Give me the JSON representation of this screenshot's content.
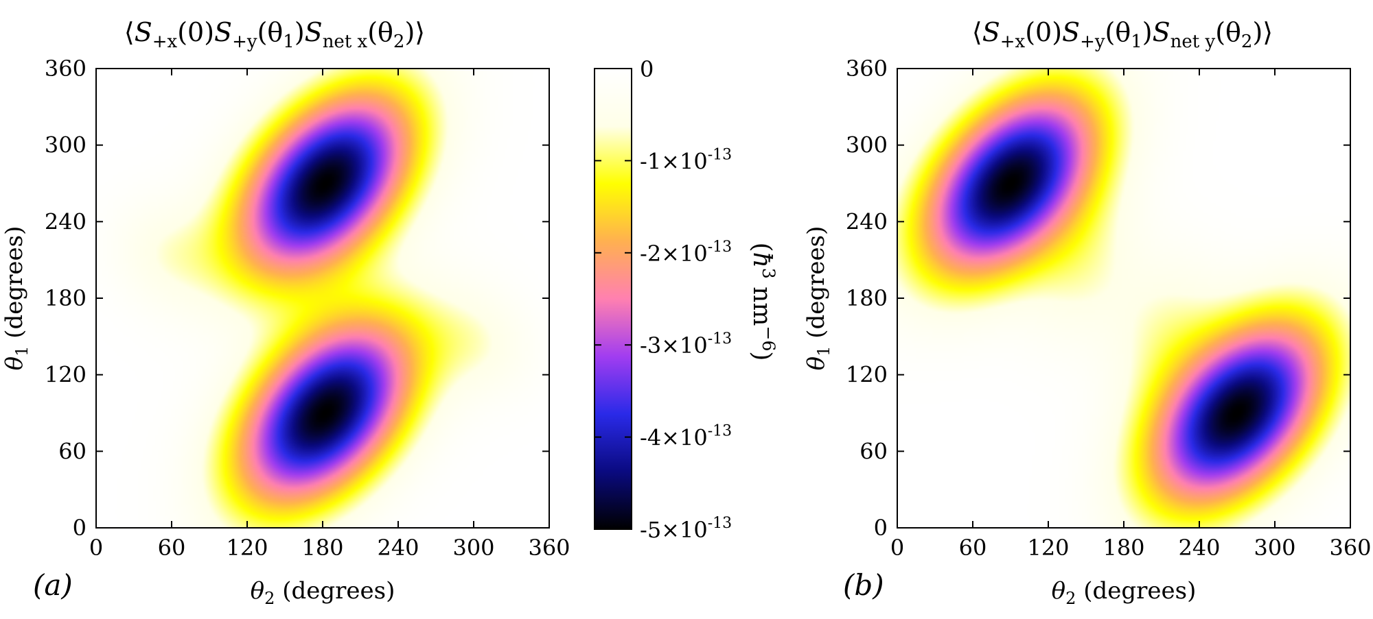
{
  "chart_data": [
    {
      "type": "heatmap",
      "panel_label": "(a)",
      "title": {
        "open": "⟨",
        "close": "⟩",
        "terms": [
          {
            "sym": "S",
            "sub": "+x",
            "arg": "(0)"
          },
          {
            "sym": "S",
            "sub": "+y",
            "arg": "(θ",
            "argsub": "1",
            "argend": ")"
          },
          {
            "sym": "S",
            "sub": "net x",
            "arg": "(θ",
            "argsub": "2",
            "argend": ")"
          }
        ]
      },
      "xlabel": {
        "sym": "θ",
        "sub": "2",
        "text": " (degrees)"
      },
      "ylabel": {
        "sym": "θ",
        "sub": "1",
        "text": " (degrees)"
      },
      "xlim": [
        0,
        360
      ],
      "ylim": [
        0,
        360
      ],
      "xticks": [
        "0",
        "60",
        "120",
        "180",
        "240",
        "300",
        "360"
      ],
      "yticks": [
        "0",
        "60",
        "120",
        "180",
        "240",
        "300",
        "360"
      ],
      "components": [
        {
          "x": 182,
          "y": 270,
          "amp": -5e-13,
          "sx": 48,
          "sy": 50,
          "rho": 0.45
        },
        {
          "x": 182,
          "y": 90,
          "amp": -5e-13,
          "sx": 48,
          "sy": 50,
          "rho": 0.45
        },
        {
          "x": 55,
          "y": 215,
          "amp": -5.5e-14,
          "sx": 30,
          "sy": 30,
          "rho": -0.1
        },
        {
          "x": 305,
          "y": 145,
          "amp": -5.5e-14,
          "sx": 30,
          "sy": 30,
          "rho": -0.1
        }
      ]
    },
    {
      "type": "heatmap",
      "panel_label": "(b)",
      "title": {
        "open": "⟨",
        "close": "⟩",
        "terms": [
          {
            "sym": "S",
            "sub": "+x",
            "arg": "(0)"
          },
          {
            "sym": "S",
            "sub": "+y",
            "arg": "(θ",
            "argsub": "1",
            "argend": ")"
          },
          {
            "sym": "S",
            "sub": "net y",
            "arg": "(θ",
            "argsub": "2",
            "argend": ")"
          }
        ]
      },
      "xlabel": {
        "sym": "θ",
        "sub": "2",
        "text": " (degrees)"
      },
      "ylabel": {
        "sym": "θ",
        "sub": "1",
        "text": " (degrees)"
      },
      "xlim": [
        0,
        360
      ],
      "ylim": [
        0,
        360
      ],
      "xticks": [
        "0",
        "60",
        "120",
        "180",
        "240",
        "300",
        "360"
      ],
      "yticks": [
        "0",
        "60",
        "120",
        "180",
        "240",
        "300",
        "360"
      ],
      "components": [
        {
          "x": 90,
          "y": 270,
          "amp": -5e-13,
          "sx": 48,
          "sy": 50,
          "rho": 0.45
        },
        {
          "x": 270,
          "y": 90,
          "amp": -5e-13,
          "sx": 48,
          "sy": 50,
          "rho": 0.45
        },
        {
          "x": 150,
          "y": 200,
          "amp": -6e-14,
          "sx": 32,
          "sy": 40,
          "rho": 0.3
        },
        {
          "x": 210,
          "y": 160,
          "amp": -6e-14,
          "sx": 32,
          "sy": 40,
          "rho": 0.3
        }
      ]
    }
  ],
  "colorbar": {
    "range": [
      -5e-13,
      0
    ],
    "ticks": [
      {
        "value": 0,
        "label": "0"
      },
      {
        "value": -1e-13,
        "mant": "-1×10",
        "exp": "-13"
      },
      {
        "value": -2e-13,
        "mant": "-2×10",
        "exp": "-13"
      },
      {
        "value": -3e-13,
        "mant": "-3×10",
        "exp": "-13"
      },
      {
        "value": -4e-13,
        "mant": "-4×10",
        "exp": "-13"
      },
      {
        "value": -5e-13,
        "mant": "-5×10",
        "exp": "-13"
      }
    ],
    "label": {
      "sym": "ħ",
      "sup": "3",
      "unit": " nm",
      "unitsup": "−6",
      "open": "(",
      "close": ")"
    },
    "colors": [
      "#000000",
      "#0a0a80",
      "#2a2ae8",
      "#a13df0",
      "#ff80b0",
      "#ffb050",
      "#ffff00",
      "#ffffe8",
      "#ffffff"
    ]
  }
}
